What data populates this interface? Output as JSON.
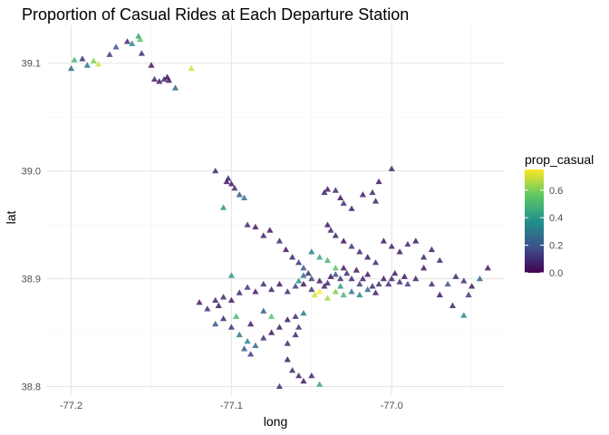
{
  "chart_data": {
    "type": "scatter",
    "title": "Proportion of Casual Rides at Each Departure Station",
    "xlabel": "long",
    "ylabel": "lat",
    "xlim": [
      -77.215,
      -76.93
    ],
    "ylim": [
      38.792,
      39.135
    ],
    "x_ticks": [
      -77.2,
      -77.1,
      -77.0
    ],
    "x_tick_labels": [
      "-77.2",
      "-77.1",
      "-77.0"
    ],
    "y_ticks": [
      38.8,
      38.9,
      39.0,
      39.1
    ],
    "y_tick_labels": [
      "38.8",
      "38.9",
      "39.0",
      "39.1"
    ],
    "marker": "triangle",
    "color_scale": {
      "name": "viridis",
      "title": "prop_casual",
      "range": [
        0,
        0.75
      ],
      "ticks": [
        0.0,
        0.2,
        0.4,
        0.6
      ],
      "tick_labels": [
        "0.0",
        "0.2",
        "0.4",
        "0.6"
      ]
    },
    "grid": true,
    "legend_position": "right",
    "points": [
      [
        -77.2,
        39.095,
        0.25
      ],
      [
        -77.198,
        39.103,
        0.5
      ],
      [
        -77.193,
        39.104,
        0.12
      ],
      [
        -77.19,
        39.098,
        0.3
      ],
      [
        -77.186,
        39.102,
        0.6
      ],
      [
        -77.183,
        39.099,
        0.7
      ],
      [
        -77.176,
        39.108,
        0.15
      ],
      [
        -77.172,
        39.115,
        0.2
      ],
      [
        -77.165,
        39.12,
        0.1
      ],
      [
        -77.162,
        39.118,
        0.35
      ],
      [
        -77.158,
        39.125,
        0.45
      ],
      [
        -77.157,
        39.122,
        0.55
      ],
      [
        -77.156,
        39.109,
        0.1
      ],
      [
        -77.15,
        39.098,
        0.05
      ],
      [
        -77.148,
        39.085,
        0.08
      ],
      [
        -77.145,
        39.083,
        0.05
      ],
      [
        -77.142,
        39.085,
        0.1
      ],
      [
        -77.14,
        39.087,
        0.02
      ],
      [
        -77.139,
        39.084,
        0.05
      ],
      [
        -77.135,
        39.077,
        0.25
      ],
      [
        -77.125,
        39.095,
        0.7
      ],
      [
        -77.11,
        39.0,
        0.1
      ],
      [
        -77.103,
        38.99,
        0.05
      ],
      [
        -77.102,
        38.993,
        0.08
      ],
      [
        -77.1,
        38.988,
        0.05
      ],
      [
        -77.098,
        38.984,
        0.1
      ],
      [
        -77.095,
        38.978,
        0.2
      ],
      [
        -77.092,
        38.975,
        0.3
      ],
      [
        -77.105,
        38.966,
        0.4
      ],
      [
        -77.09,
        38.95,
        0.1
      ],
      [
        -77.085,
        38.948,
        0.05
      ],
      [
        -77.08,
        38.94,
        0.08
      ],
      [
        -77.076,
        38.945,
        0.05
      ],
      [
        -77.07,
        38.935,
        0.1
      ],
      [
        -77.066,
        38.927,
        0.05
      ],
      [
        -77.062,
        38.92,
        0.08
      ],
      [
        -77.058,
        38.915,
        0.12
      ],
      [
        -77.055,
        38.91,
        0.2
      ],
      [
        -77.052,
        38.905,
        0.1
      ],
      [
        -77.05,
        38.9,
        0.15
      ],
      [
        -77.045,
        38.898,
        0.05
      ],
      [
        -77.042,
        38.893,
        0.08
      ],
      [
        -77.04,
        38.896,
        0.1
      ],
      [
        -77.038,
        38.902,
        0.05
      ],
      [
        -77.035,
        38.904,
        0.2
      ],
      [
        -77.032,
        38.9,
        0.12
      ],
      [
        -77.03,
        38.91,
        0.05
      ],
      [
        -77.028,
        38.905,
        0.08
      ],
      [
        -77.025,
        38.9,
        0.1
      ],
      [
        -77.022,
        38.908,
        0.05
      ],
      [
        -77.02,
        38.895,
        0.15
      ],
      [
        -77.018,
        38.9,
        0.08
      ],
      [
        -77.015,
        38.904,
        0.05
      ],
      [
        -77.012,
        38.893,
        0.1
      ],
      [
        -77.01,
        38.887,
        0.08
      ],
      [
        -77.008,
        38.895,
        0.12
      ],
      [
        -77.005,
        38.9,
        0.05
      ],
      [
        -77.002,
        38.895,
        0.1
      ],
      [
        -77.0,
        38.9,
        0.08
      ],
      [
        -76.998,
        38.905,
        0.05
      ],
      [
        -76.995,
        38.897,
        0.1
      ],
      [
        -76.992,
        38.902,
        0.05
      ],
      [
        -76.99,
        38.895,
        0.15
      ],
      [
        -76.985,
        38.9,
        0.08
      ],
      [
        -76.98,
        38.91,
        0.05
      ],
      [
        -76.975,
        38.895,
        0.1
      ],
      [
        -76.97,
        38.885,
        0.05
      ],
      [
        -76.965,
        38.895,
        0.2
      ],
      [
        -76.96,
        38.902,
        0.08
      ],
      [
        -76.955,
        38.898,
        0.1
      ],
      [
        -76.95,
        38.893,
        0.05
      ],
      [
        -76.945,
        38.9,
        0.25
      ],
      [
        -76.94,
        38.91,
        0.05
      ],
      [
        -76.952,
        38.885,
        0.12
      ],
      [
        -76.962,
        38.875,
        0.08
      ],
      [
        -76.955,
        38.866,
        0.35
      ],
      [
        -77.04,
        38.983,
        0.05
      ],
      [
        -77.042,
        38.98,
        0.08
      ],
      [
        -77.035,
        38.982,
        0.1
      ],
      [
        -77.032,
        38.975,
        0.05
      ],
      [
        -77.03,
        38.97,
        0.12
      ],
      [
        -77.025,
        38.965,
        0.08
      ],
      [
        -77.018,
        38.978,
        0.05
      ],
      [
        -77.012,
        38.98,
        0.1
      ],
      [
        -77.01,
        38.972,
        0.08
      ],
      [
        -77.008,
        38.99,
        0.05
      ],
      [
        -77.0,
        39.002,
        0.08
      ],
      [
        -77.04,
        38.95,
        0.05
      ],
      [
        -77.038,
        38.945,
        0.1
      ],
      [
        -77.035,
        38.94,
        0.08
      ],
      [
        -77.03,
        38.935,
        0.05
      ],
      [
        -77.025,
        38.93,
        0.12
      ],
      [
        -77.02,
        38.925,
        0.08
      ],
      [
        -77.015,
        38.92,
        0.05
      ],
      [
        -77.01,
        38.915,
        0.1
      ],
      [
        -77.005,
        38.935,
        0.05
      ],
      [
        -77.0,
        38.93,
        0.08
      ],
      [
        -76.995,
        38.925,
        0.05
      ],
      [
        -76.99,
        38.932,
        0.1
      ],
      [
        -76.985,
        38.935,
        0.05
      ],
      [
        -76.98,
        38.92,
        0.08
      ],
      [
        -76.975,
        38.927,
        0.05
      ],
      [
        -76.97,
        38.917,
        0.1
      ],
      [
        -77.05,
        38.89,
        0.12
      ],
      [
        -77.048,
        38.885,
        0.7
      ],
      [
        -77.045,
        38.888,
        0.75
      ],
      [
        -77.04,
        38.882,
        0.65
      ],
      [
        -77.035,
        38.888,
        0.6
      ],
      [
        -77.032,
        38.893,
        0.4
      ],
      [
        -77.03,
        38.885,
        0.5
      ],
      [
        -77.025,
        38.888,
        0.3
      ],
      [
        -77.02,
        38.885,
        0.35
      ],
      [
        -77.015,
        38.89,
        0.25
      ],
      [
        -77.05,
        38.925,
        0.3
      ],
      [
        -77.045,
        38.92,
        0.45
      ],
      [
        -77.04,
        38.917,
        0.5
      ],
      [
        -77.035,
        38.91,
        0.55
      ],
      [
        -77.055,
        38.903,
        0.25
      ],
      [
        -77.058,
        38.898,
        0.4
      ],
      [
        -77.11,
        38.88,
        0.08
      ],
      [
        -77.108,
        38.875,
        0.05
      ],
      [
        -77.105,
        38.883,
        0.1
      ],
      [
        -77.1,
        38.88,
        0.05
      ],
      [
        -77.095,
        38.887,
        0.08
      ],
      [
        -77.09,
        38.892,
        0.12
      ],
      [
        -77.085,
        38.888,
        0.05
      ],
      [
        -77.08,
        38.895,
        0.1
      ],
      [
        -77.075,
        38.89,
        0.08
      ],
      [
        -77.07,
        38.895,
        0.05
      ],
      [
        -77.065,
        38.888,
        0.1
      ],
      [
        -77.06,
        38.893,
        0.15
      ],
      [
        -77.055,
        38.895,
        0.05
      ],
      [
        -77.12,
        38.878,
        0.05
      ],
      [
        -77.115,
        38.872,
        0.1
      ],
      [
        -77.105,
        38.863,
        0.08
      ],
      [
        -77.11,
        38.858,
        0.2
      ],
      [
        -77.1,
        38.855,
        0.1
      ],
      [
        -77.095,
        38.848,
        0.3
      ],
      [
        -77.09,
        38.842,
        0.35
      ],
      [
        -77.092,
        38.835,
        0.2
      ],
      [
        -77.088,
        38.83,
        0.15
      ],
      [
        -77.085,
        38.838,
        0.25
      ],
      [
        -77.08,
        38.845,
        0.1
      ],
      [
        -77.075,
        38.85,
        0.05
      ],
      [
        -77.07,
        38.855,
        0.08
      ],
      [
        -77.065,
        38.862,
        0.05
      ],
      [
        -77.06,
        38.865,
        0.1
      ],
      [
        -77.055,
        38.868,
        0.3
      ],
      [
        -77.058,
        38.855,
        0.12
      ],
      [
        -77.06,
        38.848,
        0.1
      ],
      [
        -77.065,
        38.84,
        0.08
      ],
      [
        -77.065,
        38.825,
        0.05
      ],
      [
        -77.062,
        38.815,
        0.1
      ],
      [
        -77.058,
        38.81,
        0.08
      ],
      [
        -77.055,
        38.805,
        0.05
      ],
      [
        -77.05,
        38.81,
        0.08
      ],
      [
        -77.045,
        38.802,
        0.45
      ],
      [
        -77.07,
        38.8,
        0.1
      ],
      [
        -77.1,
        38.903,
        0.4
      ],
      [
        -77.097,
        38.865,
        0.5
      ],
      [
        -77.075,
        38.865,
        0.55
      ],
      [
        -77.08,
        38.87,
        0.2
      ],
      [
        -77.088,
        38.858,
        0.05
      ]
    ]
  }
}
